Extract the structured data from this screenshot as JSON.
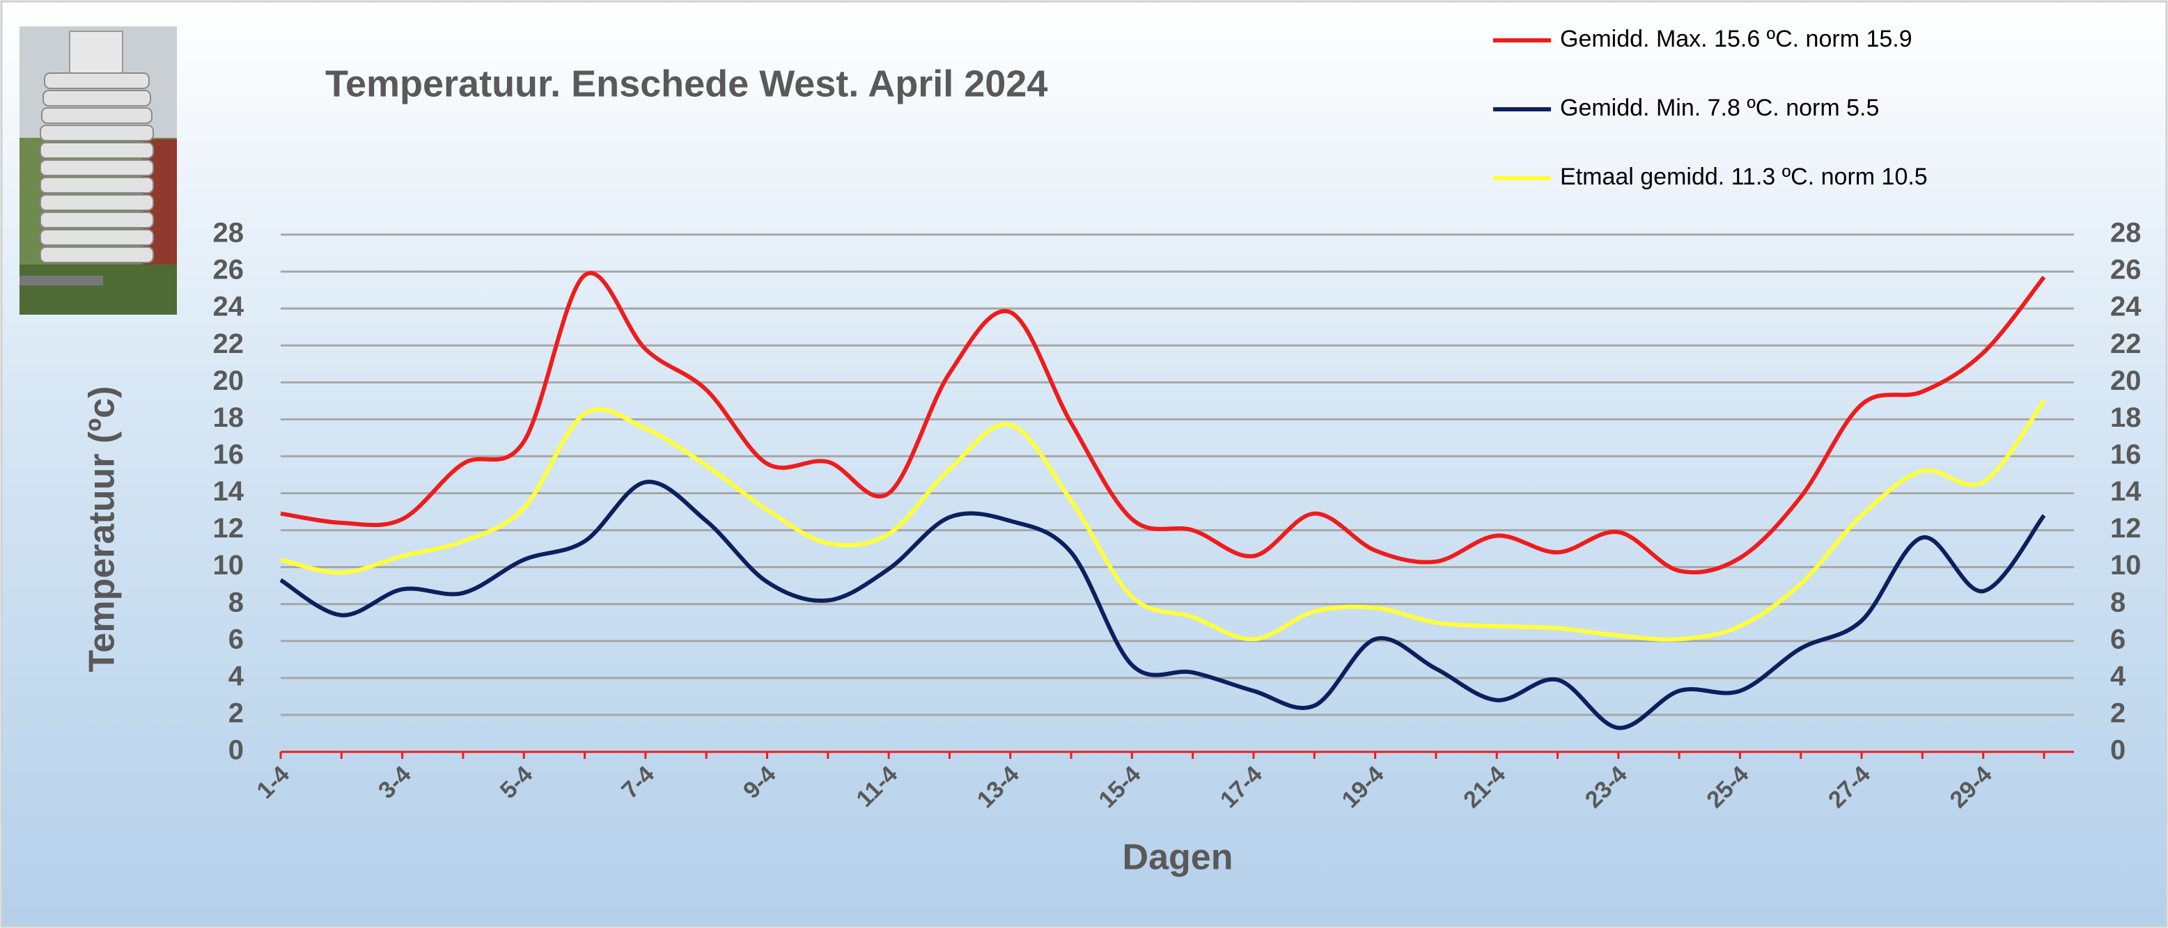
{
  "chart_data": {
    "type": "line",
    "title": "Temperatuur. Enschede West. April 2024",
    "x_label": "Dagen",
    "y_label": "Temperatuur (ºc)",
    "categories": [
      "1-4",
      null,
      "3-4",
      null,
      "5-4",
      null,
      "7-4",
      null,
      "9-4",
      null,
      "11-4",
      null,
      "13-4",
      null,
      "15-4",
      null,
      "17-4",
      null,
      "19-4",
      null,
      "21-4",
      null,
      "23-4",
      null,
      "25-4",
      null,
      "27-4",
      null,
      "29-4",
      null
    ],
    "series": [
      {
        "name": "Gemidd. Max. 15.6  ºC. norm 15.9",
        "color": "#ee1c1c",
        "values": [
          12.9,
          12.4,
          12.6,
          15.6,
          16.8,
          25.8,
          21.8,
          19.6,
          15.6,
          15.7,
          14.0,
          20.5,
          23.8,
          17.8,
          12.6,
          12.0,
          10.6,
          12.9,
          10.9,
          10.3,
          11.7,
          10.8,
          11.9,
          9.8,
          10.5,
          13.8,
          18.8,
          19.5,
          21.6,
          25.7
        ]
      },
      {
        "name": "Gemidd. Min. 7.8  ºC. norm 5.5",
        "color": "#0c1f5e",
        "values": [
          9.3,
          7.4,
          8.8,
          8.6,
          10.4,
          11.4,
          14.6,
          12.5,
          9.2,
          8.2,
          9.9,
          12.7,
          12.5,
          10.8,
          4.7,
          4.3,
          3.3,
          2.5,
          6.1,
          4.5,
          2.8,
          3.9,
          1.3,
          3.3,
          3.3,
          5.6,
          7.1,
          11.6,
          8.7,
          12.8
        ]
      },
      {
        "name": "Etmaal gemidd. 11.3  ºC. norm 10.5",
        "color": "#ffff3a",
        "values": [
          10.4,
          9.7,
          10.6,
          11.4,
          13.2,
          18.3,
          17.5,
          15.5,
          13.1,
          11.3,
          11.8,
          15.3,
          17.7,
          13.6,
          8.4,
          7.3,
          6.1,
          7.6,
          7.8,
          7.0,
          6.8,
          6.7,
          6.3,
          6.1,
          6.8,
          9.1,
          12.8,
          15.2,
          14.6,
          19.0
        ]
      }
    ],
    "ylim": [
      0,
      28
    ],
    "yticks": [
      0,
      2,
      4,
      6,
      8,
      10,
      12,
      14,
      16,
      18,
      20,
      22,
      24,
      26,
      28
    ],
    "grid": true,
    "smooth": true
  }
}
